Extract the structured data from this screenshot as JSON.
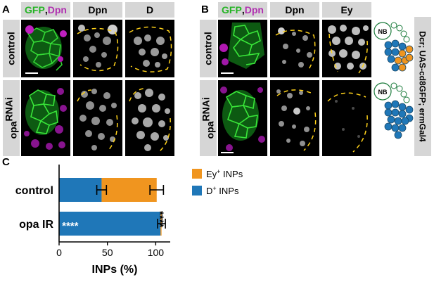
{
  "panels": {
    "A": {
      "letter": "A",
      "headers": {
        "gfp": "GFP",
        "sep": ", ",
        "dpn": "Dpn",
        "col2": "Dpn",
        "col3": "D"
      },
      "rows": {
        "control": "control",
        "opa_base": "opa",
        "opa_sup": "RNAi"
      }
    },
    "B": {
      "letter": "B",
      "headers": {
        "gfp": "GFP",
        "sep": ", ",
        "dpn": "Dpn",
        "col2": "Dpn",
        "col3": "Ey"
      },
      "rows": {
        "control": "control",
        "opa_base": "opa",
        "opa_sup": "RNAi"
      },
      "nb_label": "NB",
      "genotype": "Dcr; UAS-cd8GFP; ermGal4"
    },
    "C": {
      "letter": "C"
    }
  },
  "colors": {
    "orange": "#f0951f",
    "blue": "#1f77b8",
    "green": "#25b425",
    "magenta": "#b030b0",
    "yellow": "#ffd21a"
  },
  "chart_data": {
    "type": "bar",
    "orientation": "horizontal",
    "stacked": true,
    "categories": [
      "control",
      "opa IR"
    ],
    "series": [
      {
        "name": "D+ INPs",
        "name_base": "D",
        "name_sup": "+",
        "name_rest": " INPs",
        "color": "#1f77b8",
        "values": [
          44,
          105
        ],
        "errors": [
          5,
          4
        ]
      },
      {
        "name": "Ey+ INPs",
        "name_base": "Ey",
        "name_sup": "+",
        "name_rest": " INPs",
        "color": "#f0951f",
        "values": [
          57,
          1
        ],
        "errors": [
          7,
          0
        ]
      }
    ],
    "xlabel": "INPs (%)",
    "xlim": [
      0,
      115
    ],
    "xticks": [
      0,
      50,
      100
    ],
    "annotations": {
      "inside": "****",
      "outside": "****"
    },
    "legend_position": "right"
  }
}
